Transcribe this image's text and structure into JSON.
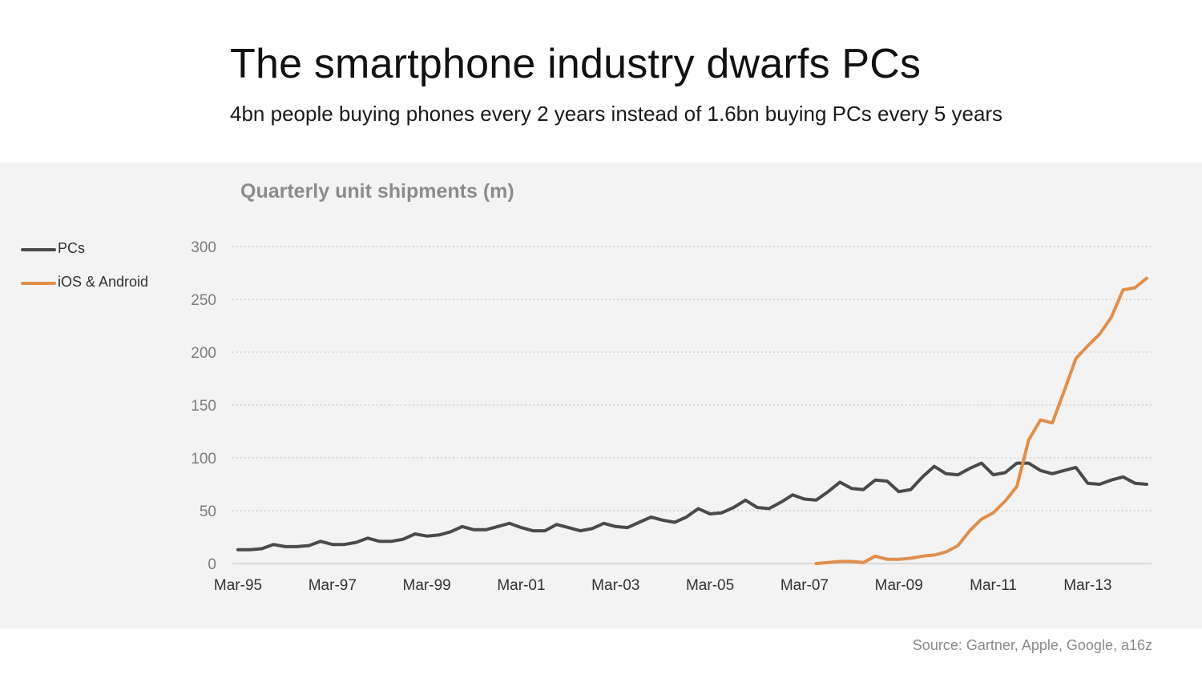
{
  "title": "The smartphone industry dwarfs PCs",
  "subtitle": "4bn people buying phones every 2 years instead of 1.6bn buying PCs every 5 years",
  "source": "Source: Gartner, Apple, Google, a16z",
  "chart_data": {
    "type": "line",
    "title": "Quarterly unit shipments (m)",
    "xlabel": "",
    "ylabel": "",
    "ylim": [
      0,
      300
    ],
    "yticks": [
      "0",
      "50",
      "100",
      "150",
      "200",
      "250",
      "300"
    ],
    "xtick_labels": [
      "Mar-95",
      "Mar-97",
      "Mar-99",
      "Mar-01",
      "Mar-03",
      "Mar-05",
      "Mar-07",
      "Mar-09",
      "Mar-11",
      "Mar-13"
    ],
    "grid": true,
    "legend_position": "left",
    "x_start": "Mar-95",
    "x_end": "Jun-14",
    "series": [
      {
        "name": "PCs",
        "color": "#4a4a4a",
        "values": [
          13,
          13,
          14,
          18,
          16,
          16,
          17,
          21,
          18,
          18,
          20,
          24,
          21,
          21,
          23,
          28,
          26,
          27,
          30,
          35,
          32,
          32,
          35,
          38,
          34,
          31,
          31,
          37,
          34,
          31,
          33,
          38,
          35,
          34,
          39,
          44,
          41,
          39,
          44,
          52,
          47,
          48,
          53,
          60,
          53,
          52,
          58,
          65,
          61,
          60,
          68,
          77,
          71,
          70,
          79,
          78,
          68,
          70,
          82,
          92,
          85,
          84,
          90,
          95,
          84,
          86,
          95,
          95,
          88,
          85,
          88,
          91,
          76,
          75,
          79,
          82,
          76,
          75
        ]
      },
      {
        "name": "iOS & Android",
        "color": "#e08e4c",
        "start": "Jun-07",
        "values": [
          0,
          1,
          2,
          2,
          1,
          7,
          4,
          4,
          5,
          7,
          8,
          11,
          17,
          31,
          42,
          48,
          59,
          73,
          117,
          136,
          133,
          163,
          194,
          206,
          217,
          233,
          259,
          261,
          270
        ]
      }
    ]
  }
}
